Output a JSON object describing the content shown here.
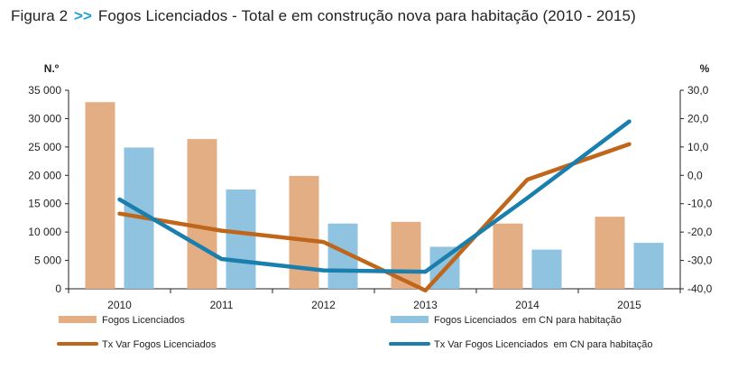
{
  "title": {
    "prefix": "Figura 2",
    "arrows": ">>",
    "text": "Fogos Licenciados - Total e em construção nova para habitação (2010 - 2015)"
  },
  "colors": {
    "arrows": "#1f9fd6",
    "bar_total": "#e3ae84",
    "bar_cn": "#8fc3df",
    "line_total": "#c0661a",
    "line_cn": "#1b7fae",
    "axis": "#222222"
  },
  "chart_data": {
    "type": "bar",
    "categories": [
      "2010",
      "2011",
      "2012",
      "2013",
      "2014",
      "2015"
    ],
    "y_left": {
      "label": "N.º",
      "lim": [
        0,
        35000
      ],
      "ticks": [
        0,
        5000,
        10000,
        15000,
        20000,
        25000,
        30000,
        35000
      ],
      "tick_labels": [
        "0",
        "5 000",
        "10 000",
        "15 000",
        "20 000",
        "25 000",
        "30 000",
        "35 000"
      ]
    },
    "y_right": {
      "label": "%",
      "lim": [
        -40,
        30
      ],
      "ticks": [
        -40,
        -30,
        -20,
        -10,
        0,
        10,
        20,
        30
      ],
      "tick_labels": [
        "-40,0",
        "-30,0",
        "-20,0",
        "-10,0",
        "0,0",
        "10,0",
        "20,0",
        "30,0"
      ]
    },
    "series": [
      {
        "name": "Fogos Licenciados",
        "type": "bar",
        "axis": "left",
        "values": [
          32900,
          26400,
          19900,
          11800,
          11500,
          12700
        ]
      },
      {
        "name": "Fogos Licenciados  em CN para habitação",
        "type": "bar",
        "axis": "left",
        "values": [
          24900,
          17500,
          11500,
          7400,
          6900,
          8100
        ]
      },
      {
        "name": "Tx Var Fogos Licenciados",
        "type": "line",
        "axis": "right",
        "values": [
          -13.5,
          -19.5,
          -23.5,
          -40.6,
          -1.5,
          11.0
        ]
      },
      {
        "name": "Tx Var Fogos Licenciados  em CN para habitação",
        "type": "line",
        "axis": "right",
        "values": [
          -8.5,
          -29.5,
          -33.5,
          -34.0,
          -8.0,
          19.0
        ]
      }
    ],
    "legend": {
      "placement": "bottom",
      "entries": [
        "Fogos Licenciados",
        "Fogos Licenciados  em CN para habitação",
        "Tx Var Fogos Licenciados",
        "Tx Var Fogos Licenciados  em CN para habitação"
      ]
    }
  }
}
